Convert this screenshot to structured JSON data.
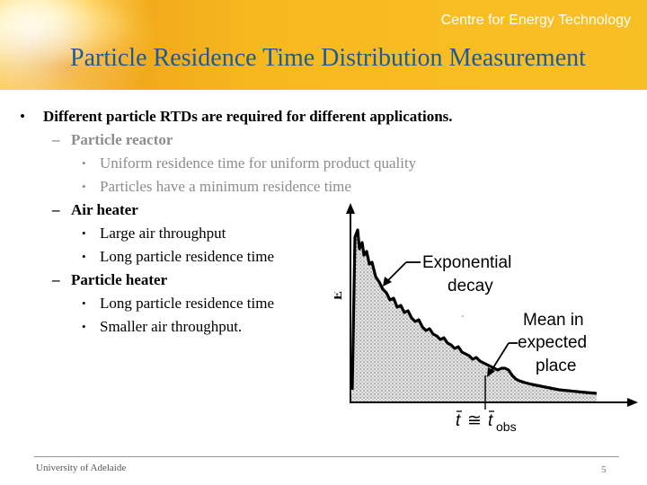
{
  "header": {
    "brand": "Centre for Energy Technology",
    "title": "Particle Residence Time Distribution Measurement"
  },
  "bullets": {
    "main": "Different particle RTDs are required for different applications.",
    "reactor": {
      "heading": "Particle reactor",
      "items": [
        "Uniform residence time for uniform product quality",
        "Particles have a minimum residence time"
      ]
    },
    "air_heater": {
      "heading": "Air heater",
      "items": [
        "Large air throughput",
        "Long particle residence time"
      ]
    },
    "particle_heater": {
      "heading": "Particle heater",
      "items": [
        "Long particle residence time",
        "Smaller air throughput."
      ]
    },
    "bullet_glyph": "•",
    "dash_glyph": "–"
  },
  "figure": {
    "y_axis_label": "E",
    "annotation_decay_line1": "Exponential",
    "annotation_decay_line2": "decay",
    "annotation_mean_line1": "Mean in",
    "annotation_mean_line2": "expected",
    "annotation_mean_line3": "place",
    "x_marker_t": "t",
    "x_marker_approx": "≅",
    "x_marker_tobs": "t",
    "x_marker_obs_sub": "obs"
  },
  "footer": {
    "institution": "University of Adelaide",
    "page_number": "5"
  },
  "colors": {
    "title": "#1d5c93",
    "header_band": "#f6b81f",
    "muted_text": "#8c8c8c"
  }
}
